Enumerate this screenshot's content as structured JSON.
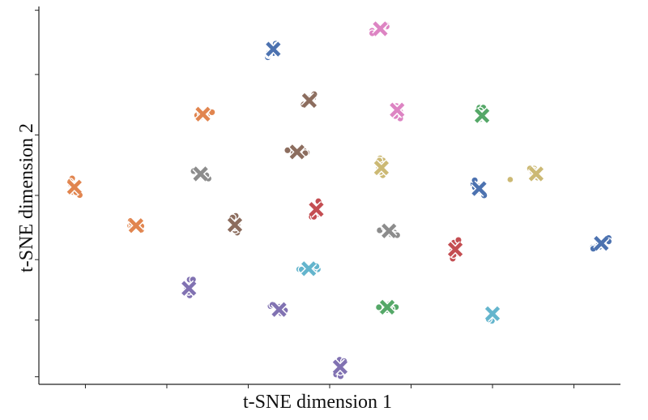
{
  "chart_data": {
    "type": "scatter",
    "xlabel": "t-SNE dimension 1",
    "ylabel": "t-SNE dimension 2",
    "xlim": [
      0,
      100
    ],
    "ylim": [
      0,
      100
    ],
    "x_ticks": [
      8,
      22,
      36,
      50,
      64,
      78,
      92
    ],
    "y_ticks": [
      2,
      17,
      33,
      50,
      66,
      82,
      99
    ],
    "tick_labels_shown": false,
    "grid": false,
    "legend": "none",
    "clusters": [
      {
        "x": 40.3,
        "y": 88.7,
        "color": "#4c72b0"
      },
      {
        "x": 58.7,
        "y": 94.1,
        "color": "#dd84c3"
      },
      {
        "x": 46.5,
        "y": 75.1,
        "color": "#8c6d5e"
      },
      {
        "x": 28.2,
        "y": 71.5,
        "color": "#e1854f"
      },
      {
        "x": 61.6,
        "y": 72.6,
        "color": "#dd84c3"
      },
      {
        "x": 76.2,
        "y": 71.1,
        "color": "#55a868"
      },
      {
        "x": 44.4,
        "y": 61.5,
        "color": "#8c6d5e"
      },
      {
        "x": 27.8,
        "y": 55.7,
        "color": "#8c8c8c"
      },
      {
        "x": 58.9,
        "y": 57.3,
        "color": "#ccb974"
      },
      {
        "x": 85.5,
        "y": 55.7,
        "color": "#ccb974"
      },
      {
        "x": 75.7,
        "y": 51.8,
        "color": "#4c72b0"
      },
      {
        "x": 6.1,
        "y": 52.2,
        "color": "#e1854f"
      },
      {
        "x": 47.7,
        "y": 46.3,
        "color": "#c44e52"
      },
      {
        "x": 16.7,
        "y": 42.0,
        "color": "#e1854f"
      },
      {
        "x": 33.7,
        "y": 42.2,
        "color": "#8c6d5e"
      },
      {
        "x": 60.2,
        "y": 40.6,
        "color": "#8c8c8c"
      },
      {
        "x": 71.6,
        "y": 35.7,
        "color": "#c44e52"
      },
      {
        "x": 96.7,
        "y": 37.3,
        "color": "#4c72b0"
      },
      {
        "x": 46.4,
        "y": 30.6,
        "color": "#64b5cd"
      },
      {
        "x": 25.8,
        "y": 25.4,
        "color": "#8172b2"
      },
      {
        "x": 41.3,
        "y": 19.8,
        "color": "#8172b2"
      },
      {
        "x": 59.9,
        "y": 20.4,
        "color": "#55a868"
      },
      {
        "x": 78.0,
        "y": 18.7,
        "color": "#64b5cd"
      },
      {
        "x": 51.8,
        "y": 4.6,
        "color": "#8172b2"
      }
    ]
  }
}
